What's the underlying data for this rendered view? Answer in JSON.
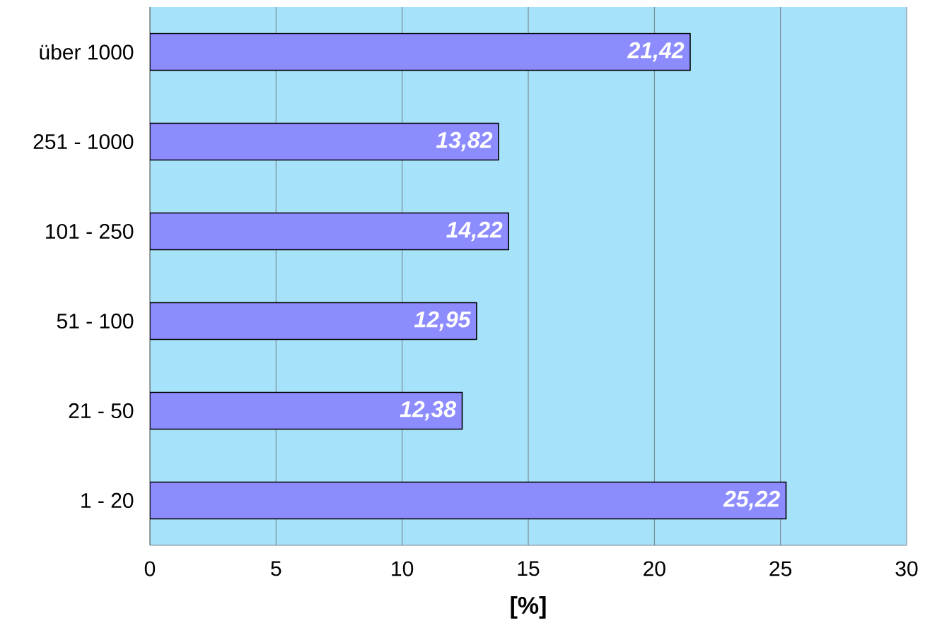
{
  "chart_data": {
    "type": "bar",
    "orientation": "horizontal",
    "categories": [
      "über 1000",
      "251 - 1000",
      "101 - 250",
      "51 - 100",
      "21 - 50",
      "1 - 20"
    ],
    "values": [
      21.42,
      13.82,
      14.22,
      12.95,
      12.38,
      25.22
    ],
    "value_labels": [
      "21,42",
      "13,82",
      "14,22",
      "12,95",
      "12,38",
      "25,22"
    ],
    "color": "#8c8cff",
    "xlabel": "[%]",
    "xlim": [
      0,
      30
    ],
    "xticks": [
      0,
      5,
      10,
      15,
      20,
      25,
      30
    ],
    "grid": "x"
  }
}
